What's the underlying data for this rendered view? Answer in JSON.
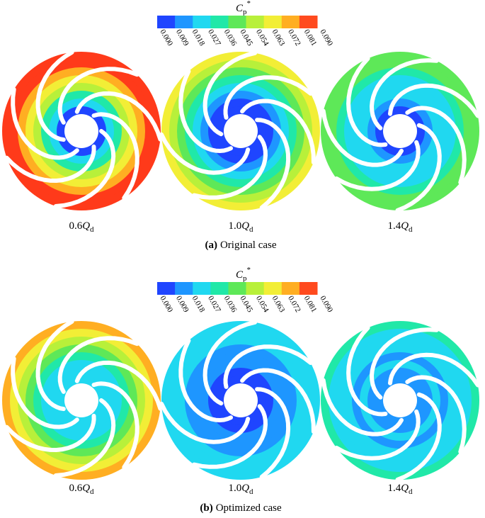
{
  "colorbar": {
    "symbol": "C",
    "sub": "p",
    "sup": "*",
    "ticks": [
      "0.000",
      "0.009",
      "0.018",
      "0.027",
      "0.036",
      "0.045",
      "0.054",
      "0.063",
      "0.072",
      "0.081",
      "0.090"
    ],
    "colors": [
      "#1f45ff",
      "#1e96ff",
      "#20d8f0",
      "#20e8a8",
      "#5ee858",
      "#b8f03a",
      "#f2ee36",
      "#ffae22",
      "#ff4a1e"
    ]
  },
  "panels": [
    {
      "label": "(a)",
      "caption": "Original case",
      "impellers": [
        {
          "coef": "0.6",
          "var": "Q",
          "sub": "d",
          "rings": [
            "#ff3a1a",
            "#ff3a1a",
            "#ffae22",
            "#f2ee36",
            "#b8f03a",
            "#20e8a8",
            "#20d8f0",
            "#1f45ff"
          ]
        },
        {
          "coef": "1.0",
          "var": "Q",
          "sub": "d",
          "rings": [
            "#f2ee36",
            "#b8f03a",
            "#5ee858",
            "#20e8a8",
            "#20d8f0",
            "#1e96ff",
            "#1f45ff",
            "#1f45ff"
          ]
        },
        {
          "coef": "1.4",
          "var": "Q",
          "sub": "d",
          "rings": [
            "#5ee858",
            "#5ee858",
            "#20e8a8",
            "#20d8f0",
            "#20d8f0",
            "#20d8f0",
            "#1e96ff",
            "#1f45ff"
          ]
        }
      ]
    },
    {
      "label": "(b)",
      "caption": "Optimized case",
      "impellers": [
        {
          "coef": "0.6",
          "var": "Q",
          "sub": "d",
          "rings": [
            "#ffae22",
            "#f2ee36",
            "#b8f03a",
            "#5ee858",
            "#20e8a8",
            "#20d8f0",
            "#20d8f0",
            "#20d8f0"
          ]
        },
        {
          "coef": "1.0",
          "var": "Q",
          "sub": "d",
          "rings": [
            "#20d8f0",
            "#20d8f0",
            "#20d8f0",
            "#1e96ff",
            "#1e96ff",
            "#1e96ff",
            "#1f45ff",
            "#1f45ff"
          ]
        },
        {
          "coef": "1.4",
          "var": "Q",
          "sub": "d",
          "rings": [
            "#20e8a8",
            "#20d8f0",
            "#20d8f0",
            "#20d8f0",
            "#1e96ff",
            "#20d8f0",
            "#1e96ff",
            "#1e96ff"
          ]
        }
      ]
    }
  ]
}
